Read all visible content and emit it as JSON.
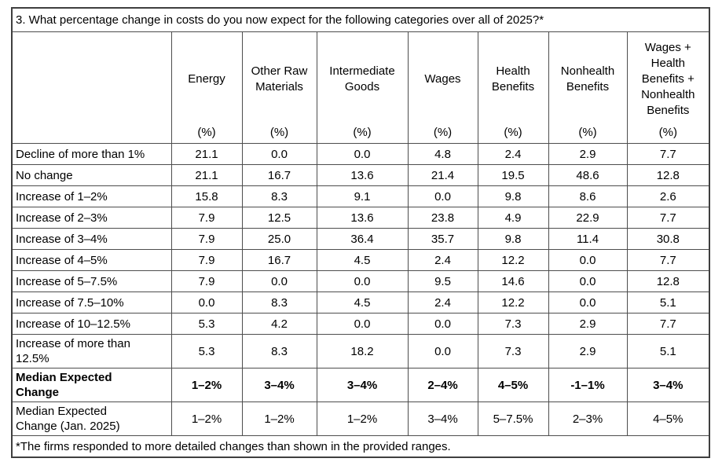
{
  "title": "3. What percentage change in costs do you now expect for the following categories over all of 2025?*",
  "colors": {
    "background": "#ffffff",
    "text": "#000000",
    "border": "#4d4d4d"
  },
  "table": {
    "unit_label": "(%)",
    "columns": [
      "Energy",
      "Other Raw Materials",
      "Intermediate Goods",
      "Wages",
      "Health Benefits",
      "Nonhealth Benefits",
      "Wages + Health Benefits + Nonhealth Benefits"
    ],
    "rows": [
      {
        "label": "Decline of more than 1%",
        "bold": false,
        "values": [
          "21.1",
          "0.0",
          "0.0",
          "4.8",
          "2.4",
          "2.9",
          "7.7"
        ]
      },
      {
        "label": "No change",
        "bold": false,
        "values": [
          "21.1",
          "16.7",
          "13.6",
          "21.4",
          "19.5",
          "48.6",
          "12.8"
        ]
      },
      {
        "label": "Increase of 1–2%",
        "bold": false,
        "values": [
          "15.8",
          "8.3",
          "9.1",
          "0.0",
          "9.8",
          "8.6",
          "2.6"
        ]
      },
      {
        "label": "Increase of 2–3%",
        "bold": false,
        "values": [
          "7.9",
          "12.5",
          "13.6",
          "23.8",
          "4.9",
          "22.9",
          "7.7"
        ]
      },
      {
        "label": "Increase of 3–4%",
        "bold": false,
        "values": [
          "7.9",
          "25.0",
          "36.4",
          "35.7",
          "9.8",
          "11.4",
          "30.8"
        ]
      },
      {
        "label": "Increase of 4–5%",
        "bold": false,
        "values": [
          "7.9",
          "16.7",
          "4.5",
          "2.4",
          "12.2",
          "0.0",
          "7.7"
        ]
      },
      {
        "label": "Increase of 5–7.5%",
        "bold": false,
        "values": [
          "7.9",
          "0.0",
          "0.0",
          "9.5",
          "14.6",
          "0.0",
          "12.8"
        ]
      },
      {
        "label": "Increase of 7.5–10%",
        "bold": false,
        "values": [
          "0.0",
          "8.3",
          "4.5",
          "2.4",
          "12.2",
          "0.0",
          "5.1"
        ]
      },
      {
        "label": "Increase of 10–12.5%",
        "bold": false,
        "values": [
          "5.3",
          "4.2",
          "0.0",
          "0.0",
          "7.3",
          "2.9",
          "7.7"
        ]
      },
      {
        "label": "Increase of more than 12.5%",
        "bold": false,
        "values": [
          "5.3",
          "8.3",
          "18.2",
          "0.0",
          "7.3",
          "2.9",
          "5.1"
        ]
      },
      {
        "label": "Median Expected Change",
        "bold": true,
        "values": [
          "1–2%",
          "3–4%",
          "3–4%",
          "2–4%",
          "4–5%",
          "-1–1%",
          "3–4%"
        ]
      },
      {
        "label": "Median Expected Change (Jan. 2025)",
        "bold": false,
        "values": [
          "1–2%",
          "1–2%",
          "1–2%",
          "3–4%",
          "5–7.5%",
          "2–3%",
          "4–5%"
        ]
      }
    ],
    "footnote": "*The firms responded to more detailed changes than shown in the provided ranges."
  }
}
